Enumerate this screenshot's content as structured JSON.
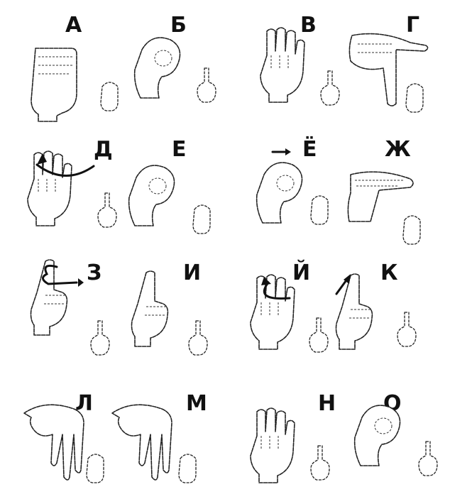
{
  "letters": [
    {
      "id": "a",
      "label": "А"
    },
    {
      "id": "be",
      "label": "Б"
    },
    {
      "id": "ve",
      "label": "В"
    },
    {
      "id": "ge",
      "label": "Г"
    },
    {
      "id": "de",
      "label": "Д"
    },
    {
      "id": "ye",
      "label": "Е"
    },
    {
      "id": "yo",
      "label": "Ё"
    },
    {
      "id": "zhe",
      "label": "Ж"
    },
    {
      "id": "ze",
      "label": "З"
    },
    {
      "id": "i",
      "label": "И"
    },
    {
      "id": "ikr",
      "label": "Й"
    },
    {
      "id": "ka",
      "label": "К"
    },
    {
      "id": "el",
      "label": "Л"
    },
    {
      "id": "em",
      "label": "М"
    },
    {
      "id": "en",
      "label": "Н"
    },
    {
      "id": "o",
      "label": "О"
    }
  ],
  "colors": {
    "ink": "#111111",
    "paper": "#ffffff"
  }
}
